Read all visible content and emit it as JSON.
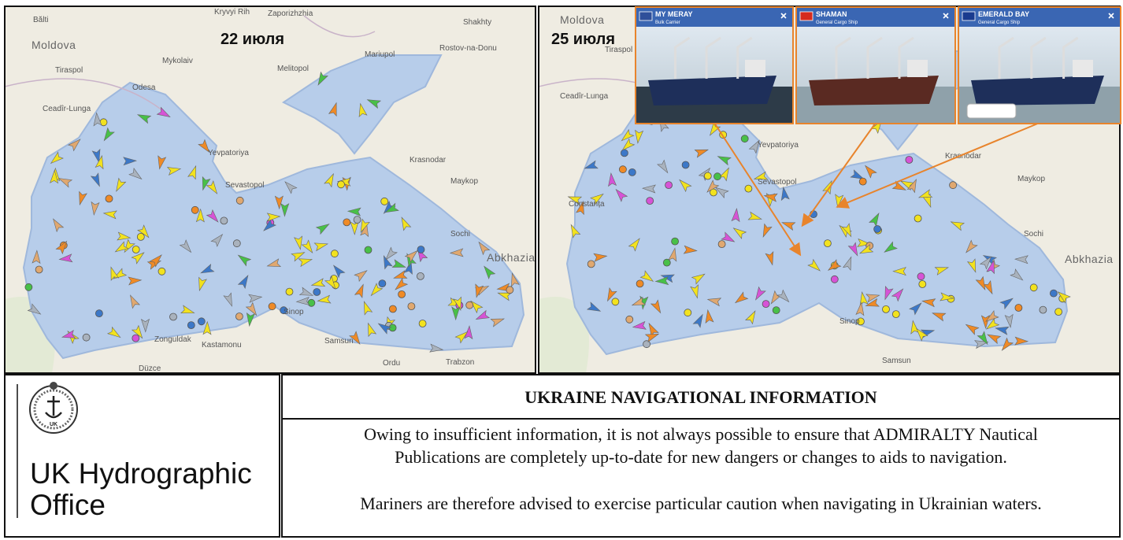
{
  "maps": [
    {
      "date_label": "22 июля",
      "places": [
        "Bălti",
        "Moldova",
        "Kryvyi Rih",
        "Zaporizhzhia",
        "Shakhty",
        "Tiraspol",
        "Mykolaiv",
        "Odesa",
        "Melitopol",
        "Mariupol",
        "Rostov-na-Donu",
        "Ceadîr-Lunga",
        "Yevpatoriya",
        "Sevastopol",
        "Krasnodar",
        "Maykop",
        "Sochi",
        "Abkhazia",
        "Sinop",
        "Zonguldak",
        "Kastamonu",
        "Samsun",
        "Ordu",
        "Trabzon",
        "Düzce"
      ]
    },
    {
      "date_label": "25 июля",
      "places": [
        "Moldova",
        "Tiraspol",
        "Ceadîr-Lunga",
        "Yevpatoriya",
        "Sevastopol",
        "Krasnodar",
        "Maykop",
        "Sochi",
        "Abkhazia",
        "Constanța",
        "Sinop",
        "Samsun"
      ],
      "vessels": [
        {
          "name": "MY MERAY",
          "type": "Bulk Carrier"
        },
        {
          "name": "SHAMAN",
          "type": "General Cargo Ship"
        },
        {
          "name": "EMERALD BAY",
          "type": "General Cargo Ship"
        }
      ]
    }
  ],
  "logo": {
    "emblem": "UK",
    "line1": "UK Hydrographic",
    "line2": "Office"
  },
  "notice": {
    "title": "UKRAINE NAVIGATIONAL INFORMATION",
    "paragraphs": [
      [
        "Owing to insufficient information, it is not always possible to ensure that ADMIRALTY Nautical",
        "Publications are completely up-to-date for new dangers or changes to aids to navigation."
      ],
      [
        "Mariners are therefore advised to exercise particular caution when navigating in Ukrainian waters."
      ]
    ]
  }
}
